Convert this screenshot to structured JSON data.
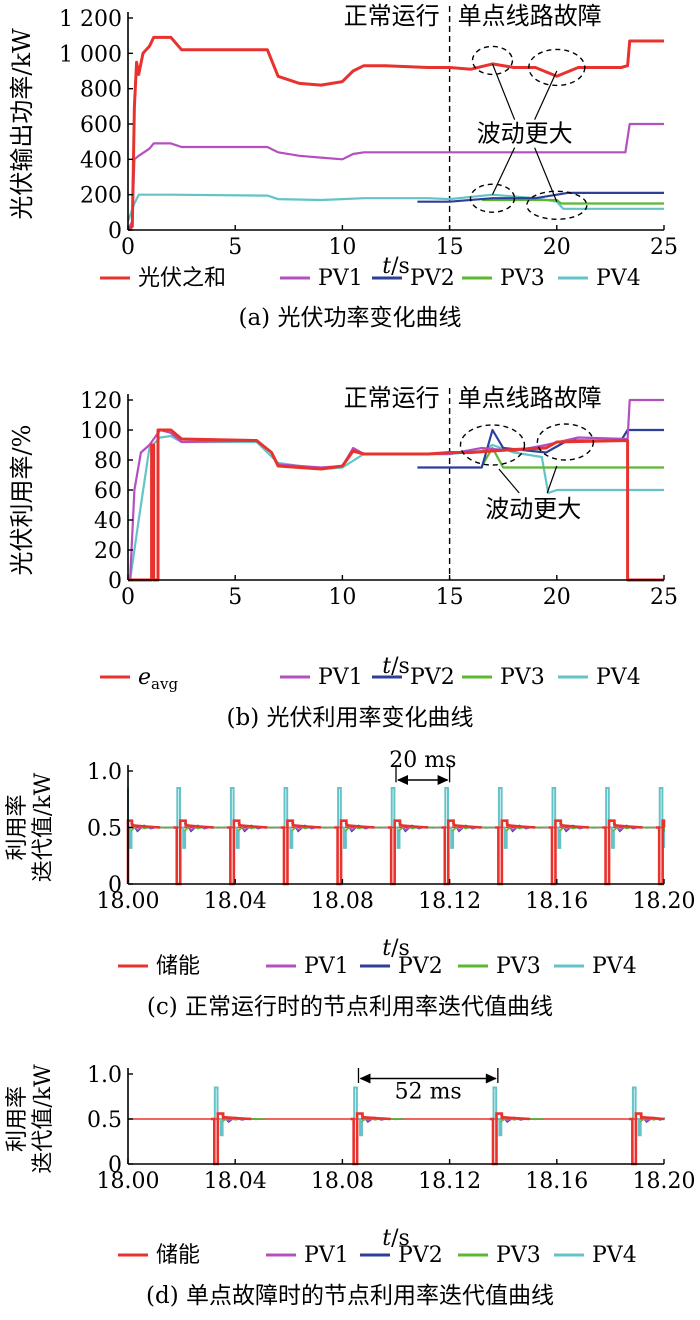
{
  "colors": {
    "sum": "#e8322d",
    "pv1": "#b44fc0",
    "pv2": "#2e3f99",
    "pv3": "#5cb831",
    "pv4": "#63c3c8",
    "axis": "#000000"
  },
  "chart_data": [
    {
      "id": "a",
      "type": "line",
      "caption": "(a)  光伏功率变化曲线",
      "ylabel": "光伏输出功率/kW",
      "xlabel_italic": "t",
      "xlabel_unit": "/s",
      "xlim": [
        0,
        25
      ],
      "ylim": [
        0,
        1200
      ],
      "x_ticks": [
        "0",
        "5",
        "10",
        "15",
        "20",
        "25"
      ],
      "y_ticks": [
        "0",
        "200",
        "400",
        "600",
        "800",
        "1 000",
        "1 200"
      ],
      "divider_x": 15,
      "region_left_label": "正常运行",
      "region_right_label": "单点线路故障",
      "annotation": "波动更大",
      "legend": [
        "光伏之和",
        "PV1",
        "PV2",
        "PV3",
        "PV4"
      ],
      "series": [
        {
          "name": "光伏之和",
          "color_key": "sum",
          "points": [
            [
              0,
              0
            ],
            [
              0.2,
              20
            ],
            [
              0.3,
              700
            ],
            [
              0.4,
              950
            ],
            [
              0.5,
              880
            ],
            [
              0.7,
              1000
            ],
            [
              1,
              1040
            ],
            [
              1.2,
              1090
            ],
            [
              2,
              1090
            ],
            [
              2.5,
              1020
            ],
            [
              6.5,
              1020
            ],
            [
              7,
              870
            ],
            [
              8,
              830
            ],
            [
              9,
              820
            ],
            [
              10,
              840
            ],
            [
              10.5,
              900
            ],
            [
              11,
              930
            ],
            [
              12,
              930
            ],
            [
              14,
              920
            ],
            [
              15,
              920
            ],
            [
              16,
              910
            ],
            [
              17,
              940
            ],
            [
              18,
              920
            ],
            [
              19,
              920
            ],
            [
              20,
              870
            ],
            [
              21,
              920
            ],
            [
              23,
              920
            ],
            [
              23.3,
              930
            ],
            [
              23.4,
              1070
            ],
            [
              25,
              1070
            ]
          ]
        },
        {
          "name": "PV1",
          "color_key": "pv1",
          "points": [
            [
              0,
              0
            ],
            [
              0.2,
              50
            ],
            [
              0.3,
              400
            ],
            [
              0.5,
              420
            ],
            [
              1,
              460
            ],
            [
              1.2,
              490
            ],
            [
              2,
              490
            ],
            [
              2.5,
              470
            ],
            [
              6.5,
              470
            ],
            [
              7,
              440
            ],
            [
              8,
              420
            ],
            [
              9,
              410
            ],
            [
              10,
              400
            ],
            [
              10.5,
              430
            ],
            [
              11,
              440
            ],
            [
              15,
              440
            ],
            [
              23.2,
              440
            ],
            [
              23.4,
              600
            ],
            [
              25,
              600
            ]
          ]
        },
        {
          "name": "PV2",
          "color_key": "pv2",
          "points": [
            [
              13.5,
              160
            ],
            [
              15,
              160
            ],
            [
              17,
              180
            ],
            [
              19,
              180
            ],
            [
              20.5,
              210
            ],
            [
              25,
              210
            ]
          ]
        },
        {
          "name": "PV3",
          "color_key": "pv3",
          "points": [
            [
              16.5,
              170
            ],
            [
              20,
              170
            ],
            [
              20.2,
              150
            ],
            [
              25,
              150
            ]
          ]
        },
        {
          "name": "PV4",
          "color_key": "pv4",
          "points": [
            [
              0,
              50
            ],
            [
              0.3,
              150
            ],
            [
              0.5,
              200
            ],
            [
              1,
              200
            ],
            [
              2,
              200
            ],
            [
              6.5,
              195
            ],
            [
              7,
              175
            ],
            [
              9,
              170
            ],
            [
              10,
              175
            ],
            [
              11,
              180
            ],
            [
              14,
              180
            ],
            [
              15,
              175
            ],
            [
              17,
              200
            ],
            [
              19,
              180
            ],
            [
              20,
              160
            ],
            [
              20.3,
              120
            ],
            [
              25,
              120
            ]
          ]
        }
      ]
    },
    {
      "id": "b",
      "type": "line",
      "caption": "(b)  光伏利用率变化曲线",
      "ylabel": "光伏利用率/%",
      "xlabel_italic": "t",
      "xlabel_unit": "/s",
      "xlim": [
        0,
        25
      ],
      "ylim": [
        0,
        120
      ],
      "x_ticks": [
        "0",
        "5",
        "10",
        "15",
        "20",
        "25"
      ],
      "y_ticks": [
        "0",
        "20",
        "40",
        "60",
        "80",
        "100",
        "120"
      ],
      "divider_x": 15,
      "region_left_label": "正常运行",
      "region_right_label": "单点线路故障",
      "annotation": "波动更大",
      "legend_first_italic": "e",
      "legend_first_sub": "avg",
      "legend": [
        "PV1",
        "PV2",
        "PV3",
        "PV4"
      ],
      "series": [
        {
          "name": "e_avg",
          "color_key": "sum",
          "points": [
            [
              0,
              0
            ],
            [
              1.1,
              0
            ],
            [
              1.1,
              90
            ],
            [
              1.2,
              90
            ],
            [
              1.2,
              0
            ],
            [
              1.4,
              0
            ],
            [
              1.4,
              100
            ],
            [
              2,
              100
            ],
            [
              2.5,
              94
            ],
            [
              6,
              93
            ],
            [
              6.7,
              85
            ],
            [
              7,
              76
            ],
            [
              9,
              74
            ],
            [
              10,
              76
            ],
            [
              10.5,
              86
            ],
            [
              11,
              84
            ],
            [
              14,
              84
            ],
            [
              15,
              85
            ],
            [
              16,
              85
            ],
            [
              17,
              86
            ],
            [
              18,
              87
            ],
            [
              19.5,
              88
            ],
            [
              20,
              92
            ],
            [
              23.3,
              93
            ],
            [
              23.3,
              0
            ],
            [
              25,
              0
            ]
          ]
        },
        {
          "name": "PV1",
          "color_key": "pv1",
          "points": [
            [
              0.1,
              0
            ],
            [
              0.3,
              60
            ],
            [
              0.6,
              85
            ],
            [
              1,
              90
            ],
            [
              1.5,
              100
            ],
            [
              2,
              98
            ],
            [
              2.5,
              92
            ],
            [
              6,
              93
            ],
            [
              6.7,
              85
            ],
            [
              7,
              77
            ],
            [
              9,
              75
            ],
            [
              10,
              76
            ],
            [
              10.5,
              88
            ],
            [
              11,
              84
            ],
            [
              15,
              84
            ],
            [
              16.5,
              88
            ],
            [
              18,
              86
            ],
            [
              19.5,
              90
            ],
            [
              21,
              95
            ],
            [
              23.3,
              94
            ],
            [
              23.4,
              120
            ],
            [
              25,
              120
            ]
          ]
        },
        {
          "name": "PV2",
          "color_key": "pv2",
          "points": [
            [
              13.5,
              75
            ],
            [
              16.5,
              75
            ],
            [
              17,
              100
            ],
            [
              17.5,
              88
            ],
            [
              19.5,
              85
            ],
            [
              20.5,
              93
            ],
            [
              23,
              93
            ],
            [
              23.3,
              100
            ],
            [
              25,
              100
            ]
          ]
        },
        {
          "name": "PV3",
          "color_key": "pv3",
          "points": [
            [
              16.5,
              76
            ],
            [
              17,
              88
            ],
            [
              17.5,
              75
            ],
            [
              25,
              75
            ]
          ]
        },
        {
          "name": "PV4",
          "color_key": "pv4",
          "points": [
            [
              0.1,
              0
            ],
            [
              0.5,
              40
            ],
            [
              1,
              88
            ],
            [
              1.5,
              95
            ],
            [
              2,
              96
            ],
            [
              2.5,
              92
            ],
            [
              6,
              92
            ],
            [
              7,
              78
            ],
            [
              9,
              74
            ],
            [
              10,
              75
            ],
            [
              11,
              84
            ],
            [
              15,
              84
            ],
            [
              16.5,
              86
            ],
            [
              17,
              90
            ],
            [
              18,
              85
            ],
            [
              19.3,
              82
            ],
            [
              19.6,
              58
            ],
            [
              20,
              60
            ],
            [
              25,
              60
            ]
          ]
        }
      ]
    },
    {
      "id": "c",
      "type": "line",
      "caption": "(c)  正常运行时的节点利用率迭代值曲线",
      "ylabel_line1": "利用率",
      "ylabel_line2": "迭代值/kW",
      "xlabel_italic": "t",
      "xlabel_unit": "/s",
      "xlim": [
        18.0,
        18.2
      ],
      "ylim": [
        0,
        1.0
      ],
      "x_ticks": [
        "18.00",
        "18.04",
        "18.08",
        "18.12",
        "18.16",
        "18.20"
      ],
      "y_ticks": [
        "0",
        "0.5",
        "1.0"
      ],
      "period_label": "20 ms",
      "period_range": [
        18.1,
        18.12
      ],
      "legend": [
        "储能",
        "PV1",
        "PV2",
        "PV3",
        "PV4"
      ],
      "baseline": 0.5,
      "spike_times": [
        18.0,
        18.02,
        18.04,
        18.06,
        18.08,
        18.1,
        18.12,
        18.14,
        18.16,
        18.18,
        18.2
      ]
    },
    {
      "id": "d",
      "type": "line",
      "caption": "(d)  单点故障时的节点利用率迭代值曲线",
      "ylabel_line1": "利用率",
      "ylabel_line2": "迭代值/kW",
      "xlabel_italic": "t",
      "xlabel_unit": "/s",
      "xlim": [
        18.0,
        18.2
      ],
      "ylim": [
        0,
        1.0
      ],
      "x_ticks": [
        "18.00",
        "18.04",
        "18.08",
        "18.12",
        "18.16",
        "18.20"
      ],
      "y_ticks": [
        "0",
        "0.5",
        "1.0"
      ],
      "period_label": "52 ms",
      "period_range": [
        18.086,
        18.138
      ],
      "legend": [
        "储能",
        "PV1",
        "PV2",
        "PV3",
        "PV4"
      ],
      "baseline": 0.5,
      "spike_times": [
        18.034,
        18.086,
        18.138,
        18.19
      ]
    }
  ]
}
